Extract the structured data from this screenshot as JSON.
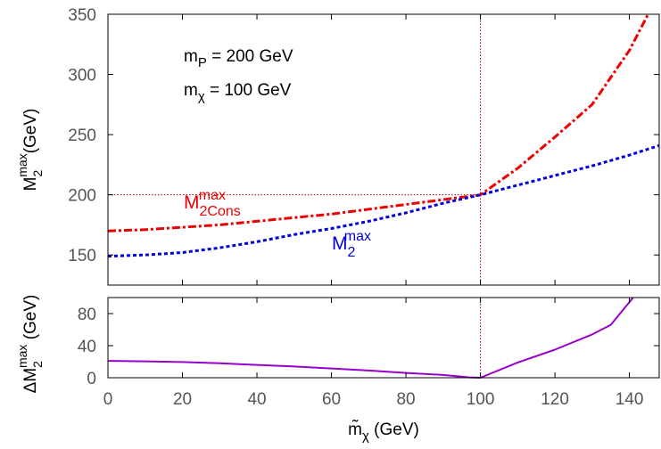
{
  "chart_data": [
    {
      "type": "line",
      "panel": "top",
      "xlim": [
        0,
        148
      ],
      "ylim": [
        125,
        350
      ],
      "xticks": [
        0,
        20,
        40,
        60,
        80,
        100,
        120,
        140
      ],
      "yticks": [
        150,
        200,
        250,
        300,
        350
      ],
      "ytick_labels": [
        "150",
        "200",
        "250",
        "300",
        "350"
      ],
      "ylabel": {
        "main": "M",
        "sub": "2",
        "sup": "max",
        "unit": "(GeV)"
      },
      "reference_lines": {
        "x": 100,
        "y": 200,
        "color": "#aa0000"
      },
      "annotations": [
        {
          "main": "m",
          "sub": "P",
          "rest": " = 200 GeV"
        },
        {
          "main": "m",
          "sub": "χ",
          "rest": " = 100 GeV"
        }
      ],
      "series": [
        {
          "name": {
            "main": "M",
            "sub": "2Cons",
            "sup": "max"
          },
          "color": "#ee0000",
          "style": "dash-dot",
          "x": [
            0,
            10,
            20,
            30,
            40,
            50,
            60,
            70,
            80,
            90,
            100,
            110,
            120,
            130,
            140,
            145
          ],
          "y": [
            170,
            171,
            173,
            175,
            178,
            181,
            184,
            188,
            192,
            196,
            200,
            222,
            248,
            275,
            320,
            350
          ]
        },
        {
          "name": {
            "main": "M",
            "sub": "2",
            "sup": "max"
          },
          "color": "#0000dd",
          "style": "dotted",
          "x": [
            0,
            10,
            20,
            30,
            40,
            50,
            60,
            70,
            80,
            90,
            100,
            110,
            120,
            130,
            140,
            148
          ],
          "y": [
            149,
            150,
            152,
            156,
            161,
            167,
            172,
            178,
            185,
            193,
            200,
            208,
            216,
            224,
            233,
            241
          ]
        }
      ]
    },
    {
      "type": "line",
      "panel": "bottom",
      "xlim": [
        0,
        148
      ],
      "ylim": [
        0,
        100
      ],
      "xticks": [
        0,
        20,
        40,
        60,
        80,
        100,
        120,
        140
      ],
      "xtick_labels": [
        "0",
        "20",
        "40",
        "60",
        "80",
        "100",
        "120",
        "140"
      ],
      "yticks": [
        0,
        40,
        80
      ],
      "ytick_labels": [
        "0",
        "40",
        "80"
      ],
      "ylabel": {
        "prefix": "ΔM",
        "sub": "2",
        "sup": "max",
        "unit": " (GeV)"
      },
      "xlabel": {
        "main": "m̃",
        "sub": "χ",
        "unit": " (GeV)"
      },
      "reference_lines": {
        "x": 100,
        "color": "#aa0000"
      },
      "series": [
        {
          "color": "#9900cc",
          "style": "solid",
          "x": [
            0,
            10,
            20,
            30,
            40,
            50,
            60,
            70,
            80,
            90,
            97,
            100,
            110,
            120,
            130,
            135,
            141
          ],
          "y": [
            21,
            20.5,
            19.5,
            18,
            16,
            14,
            11.5,
            9,
            6,
            3.5,
            0.5,
            0,
            19,
            35,
            54,
            66,
            100
          ]
        }
      ]
    }
  ]
}
